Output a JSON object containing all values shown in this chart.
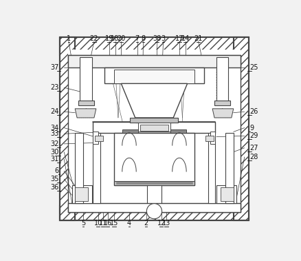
{
  "bg_color": "#f2f2f2",
  "line_color": "#444444",
  "fig_width": 4.38,
  "fig_height": 3.79,
  "label_fontsize": 7.0,
  "hatch_color": "#888888"
}
